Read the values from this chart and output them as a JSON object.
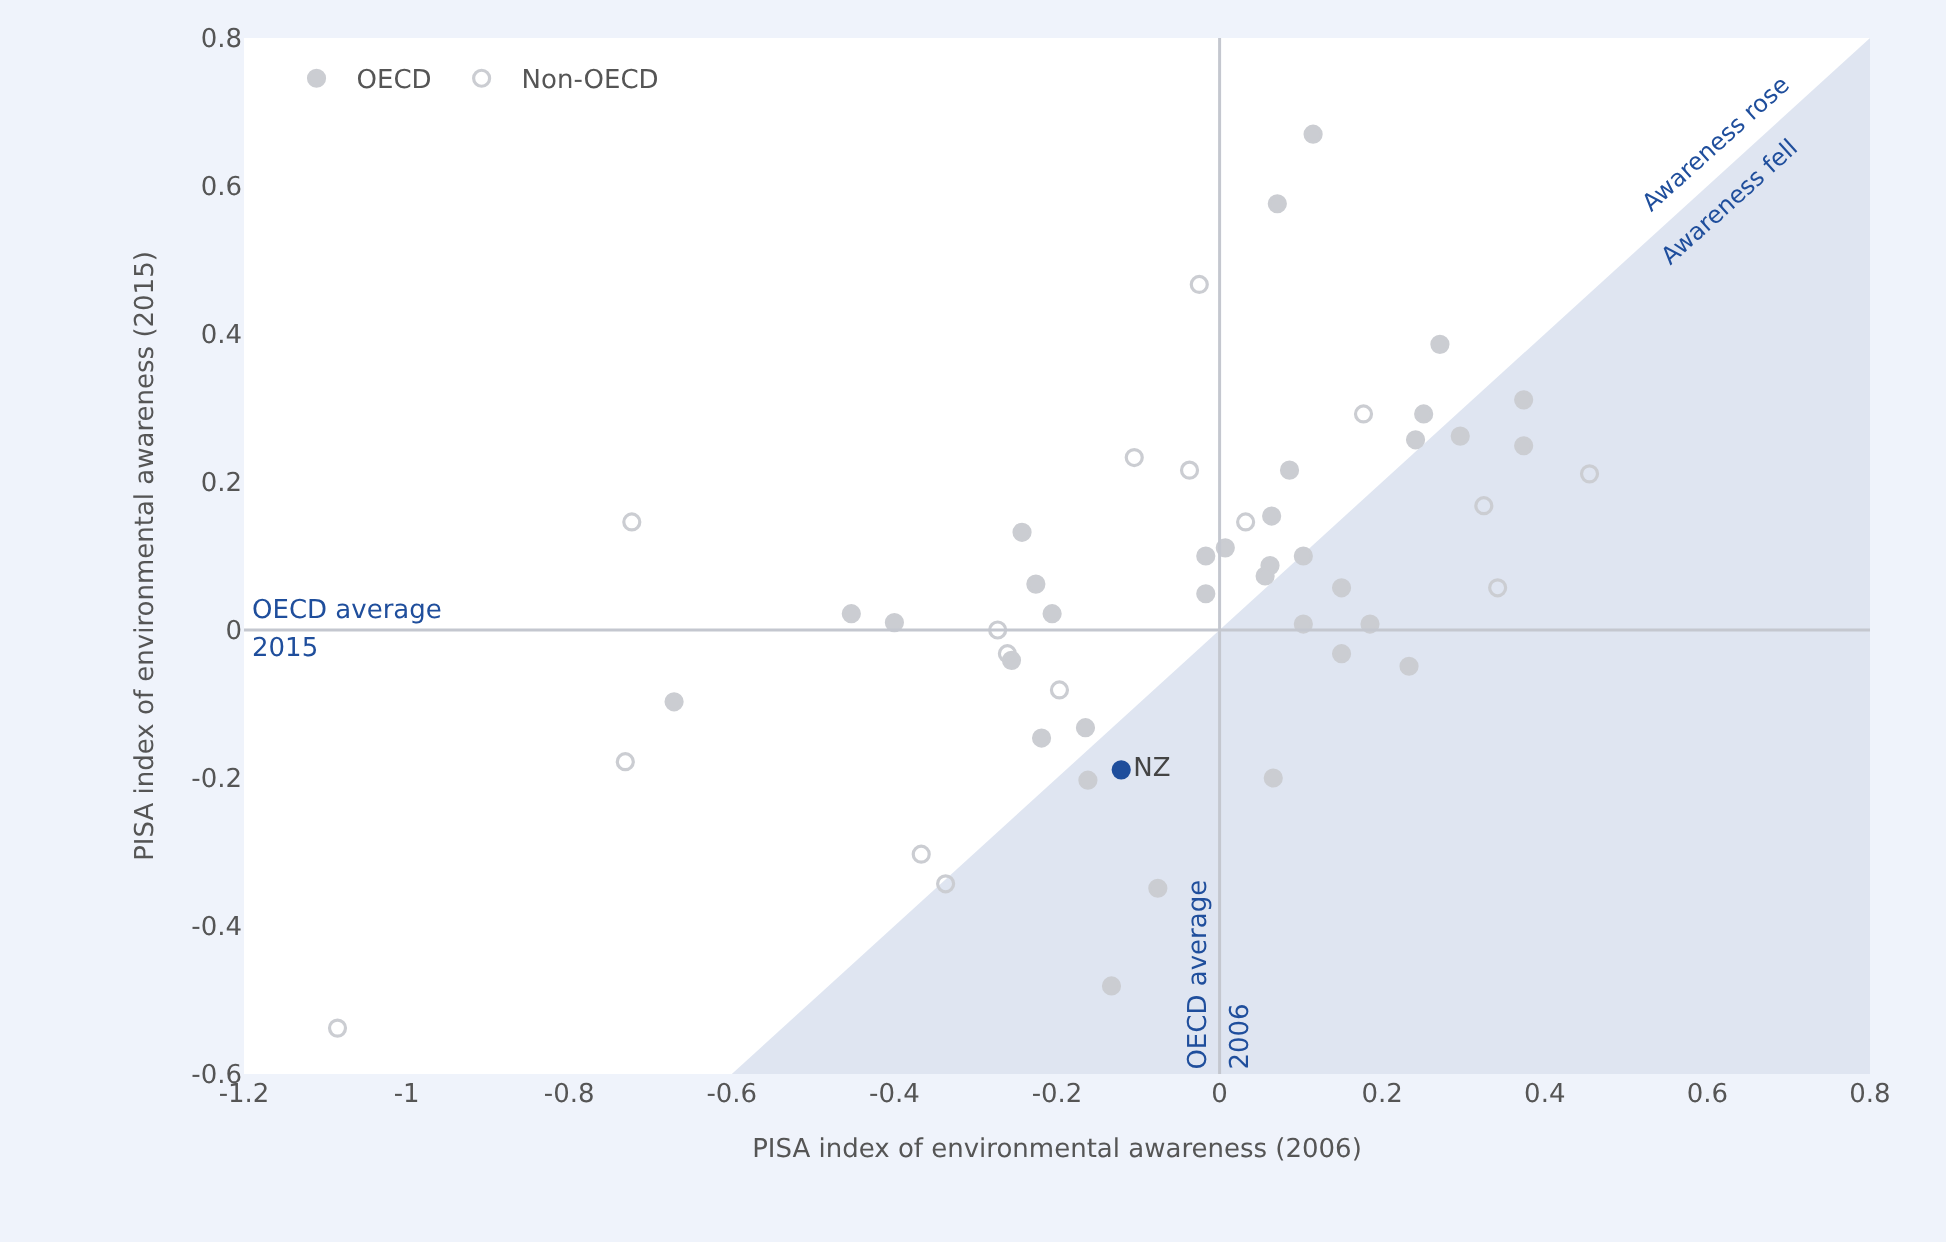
{
  "chart_data": {
    "type": "scatter",
    "xlabel": "PISA index of environmental awareness (2006)",
    "ylabel": "PISA index of environmental awareness (2015)",
    "xlim": [
      -1.2,
      0.8
    ],
    "xticks": [
      -1.2,
      -1,
      -0.8,
      -0.6,
      -0.4,
      -0.2,
      0,
      0.2,
      0.4,
      0.6,
      0.8
    ],
    "ylim": [
      -0.6,
      0.8
    ],
    "yticks": [
      -0.6,
      -0.4,
      -0.2,
      0,
      0.2,
      0.4,
      0.6,
      0.8
    ],
    "legend": "top left",
    "series": [
      {
        "type": "area",
        "color": "#dfe5f1",
        "x": [
          -0.6,
          0.8
        ],
        "values": [
          -0.6,
          0.8
        ]
      },
      {
        "name": "OECD",
        "color": "#cbcdd2",
        "marker": "circle",
        "x": [
          -0.453,
          -0.4,
          -0.671,
          0.115,
          0.071,
          0.086,
          0.064,
          0.007,
          -0.017,
          -0.017,
          0.062,
          0.056,
          0.103,
          0.15,
          0.103,
          0.185,
          -0.243,
          -0.226,
          -0.206,
          -0.256,
          -0.165,
          -0.219,
          -0.162,
          0.066,
          -0.076,
          -0.133,
          0.15,
          0.271,
          0.251,
          0.241,
          0.296,
          0.374,
          0.374,
          0.233
        ],
        "values": [
          0.022,
          0.01,
          -0.097,
          0.67,
          0.576,
          0.216,
          0.154,
          0.111,
          0.1,
          0.049,
          0.087,
          0.073,
          0.1,
          0.057,
          0.008,
          0.008,
          0.132,
          0.062,
          0.022,
          -0.041,
          -0.132,
          -0.146,
          -0.203,
          -0.2,
          -0.349,
          -0.481,
          -0.032,
          0.386,
          0.292,
          0.257,
          0.262,
          0.311,
          0.249,
          -0.049
        ]
      },
      {
        "name": "Non-OECD",
        "color": "#cbcdd2",
        "marker": "circle-open",
        "x": [
          -0.723,
          -0.731,
          -1.085,
          -0.025,
          -0.105,
          -0.037,
          0.032,
          0.177,
          -0.273,
          -0.261,
          -0.197,
          -0.367,
          -0.337,
          0.325,
          0.455,
          0.342
        ],
        "values": [
          0.146,
          -0.178,
          -0.538,
          0.467,
          0.233,
          0.216,
          0.146,
          0.292,
          0.0,
          -0.032,
          -0.081,
          -0.303,
          -0.343,
          0.168,
          0.211,
          0.057
        ]
      },
      {
        "name": "NZ",
        "color": "#1f4e9c",
        "marker": "circle",
        "x": [
          -0.121
        ],
        "values": [
          -0.189
        ]
      }
    ],
    "ref_lines": [
      {
        "axis": "x",
        "value": 0,
        "label": "OECD average 2006",
        "color": "#c4c7cf"
      },
      {
        "axis": "y",
        "value": 0,
        "label": "OECD average 2015",
        "color": "#c4c7cf"
      }
    ],
    "annotations": [
      "Awareness rose",
      "Awareness fell"
    ]
  }
}
